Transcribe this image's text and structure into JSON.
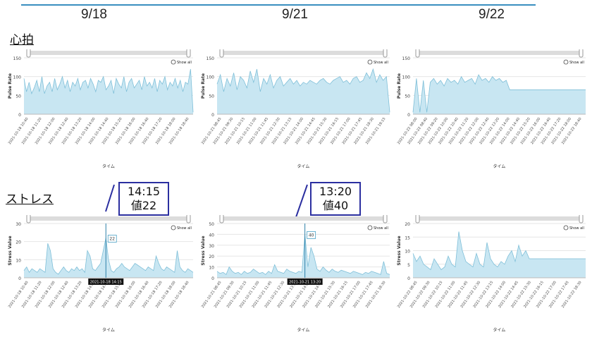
{
  "header": {
    "dates": [
      "9/18",
      "9/21",
      "9/22"
    ]
  },
  "sections": {
    "heart": "心拍",
    "stress": "ストレス"
  },
  "callouts": [
    {
      "time": "14:15",
      "value": "値22"
    },
    {
      "time": "13:20",
      "value": "値40"
    }
  ],
  "chart_data": [
    {
      "type": "area",
      "title": "",
      "xlabel": "タイム",
      "ylabel": "Pulse Rate",
      "ylim": [
        0,
        150
      ],
      "yticks": [
        0,
        50,
        100,
        150
      ],
      "show_all": "Show all",
      "xticks": [
        "2021-10-18 10:40",
        "2021-10-18 11:20",
        "2021-10-18 12:00",
        "2021-10-18 12:40",
        "2021-10-18 13:20",
        "2021-10-18 14:00",
        "2021-10-18 14:40",
        "2021-10-18 15:20",
        "2021-10-18 16:00",
        "2021-10-18 16:40",
        "2021-10-18 17:20",
        "2021-10-18 18:00",
        "2021-10-18 18:40"
      ],
      "values": [
        95,
        60,
        85,
        55,
        70,
        90,
        60,
        100,
        55,
        75,
        85,
        60,
        95,
        65,
        80,
        100,
        70,
        90,
        60,
        85,
        75,
        95,
        65,
        85,
        90,
        70,
        95,
        80,
        60,
        90,
        85,
        100,
        65,
        75,
        90,
        55,
        95,
        80,
        70,
        100,
        60,
        85,
        95,
        70,
        80,
        90,
        65,
        100,
        75,
        85,
        70,
        95,
        60,
        90,
        80,
        100,
        65,
        85,
        75,
        95,
        70,
        90,
        60,
        85,
        80,
        120,
        5
      ]
    },
    {
      "type": "area",
      "title": "",
      "xlabel": "タイム",
      "ylabel": "Pulse Rate",
      "ylim": [
        0,
        150
      ],
      "yticks": [
        0,
        50,
        100,
        150
      ],
      "show_all": "Show all",
      "xticks": [
        "2021-10-21 08:45",
        "2021-10-21 09:30",
        "2021-10-21 10:15",
        "2021-10-21 11:00",
        "2021-10-21 11:45",
        "2021-10-21 12:30",
        "2021-10-21 13:15",
        "2021-10-21 14:00",
        "2021-10-21 14:45",
        "2021-10-21 15:30",
        "2021-10-21 16:15",
        "2021-10-21 17:00",
        "2021-10-21 17:45",
        "2021-10-21 18:30",
        "2021-10-21 19:15"
      ],
      "values": [
        80,
        105,
        60,
        95,
        75,
        110,
        65,
        100,
        90,
        70,
        115,
        85,
        120,
        60,
        95,
        80,
        105,
        70,
        90,
        100,
        75,
        85,
        95,
        80,
        90,
        75,
        85,
        80,
        90,
        85,
        80,
        90,
        95,
        85,
        80,
        90,
        95,
        100,
        85,
        90,
        80,
        95,
        100,
        85,
        90,
        110,
        95,
        120,
        85,
        105,
        90,
        100,
        5
      ]
    },
    {
      "type": "area",
      "title": "",
      "xlabel": "タイム",
      "ylabel": "Pulse Rate",
      "ylim": [
        0,
        150
      ],
      "yticks": [
        0,
        50,
        100,
        150
      ],
      "show_all": "Show all",
      "xticks": [
        "2021-10-22 08:00",
        "2021-10-22 08:40",
        "2021-10-22 09:20",
        "2021-10-22 10:00",
        "2021-10-22 10:40",
        "2021-10-22 11:20",
        "2021-10-22 12:00",
        "2021-10-22 12:40",
        "2021-10-22 13:20",
        "2021-10-22 14:00",
        "2021-10-22 14:40",
        "2021-10-22 15:20",
        "2021-10-22 16:00",
        "2021-10-22 16:40",
        "2021-10-22 17:20",
        "2021-10-22 18:00",
        "2021-10-22 18:40"
      ],
      "values": [
        5,
        95,
        5,
        90,
        5,
        85,
        95,
        80,
        90,
        75,
        95,
        85,
        90,
        80,
        100,
        85,
        90,
        95,
        80,
        105,
        90,
        95,
        85,
        100,
        90,
        95,
        85,
        90,
        65,
        65,
        65,
        65,
        65,
        65,
        65,
        65,
        65,
        65,
        65,
        65,
        65,
        65,
        65,
        65,
        65,
        65,
        65,
        65,
        65,
        65,
        65
      ]
    },
    {
      "type": "area",
      "title": "",
      "xlabel": "タイム",
      "ylabel": "Stress Value",
      "ylim": [
        0,
        30
      ],
      "yticks": [
        0,
        10,
        20,
        30
      ],
      "show_all": "Show all",
      "xticks": [
        "2021-10-18 10:40",
        "2021-10-18 11:20",
        "2021-10-18 12:00",
        "2021-10-18 12:40",
        "2021-10-18 13:20",
        "2021-10-18 14:00",
        "2021-10-18 14:40",
        "2021-10-18 15:20",
        "2021-10-18 16:00",
        "2021-10-18 16:40",
        "2021-10-18 17:20",
        "2021-10-18 18:00",
        "2021-10-18 18:40"
      ],
      "values": [
        4,
        6,
        3,
        5,
        4,
        3,
        5,
        4,
        3,
        19,
        15,
        5,
        3,
        2,
        4,
        6,
        4,
        3,
        5,
        4,
        6,
        4,
        5,
        3,
        15,
        12,
        5,
        4,
        6,
        8,
        15,
        22,
        10,
        4,
        3,
        5,
        6,
        8,
        6,
        5,
        4,
        6,
        8,
        7,
        6,
        5,
        4,
        6,
        5,
        4,
        12,
        8,
        5,
        4,
        6,
        5,
        4,
        3,
        15,
        6,
        4,
        3,
        5,
        4,
        3
      ],
      "tooltip": {
        "index": 31,
        "value": "22",
        "time": "2021-10-18 14:15"
      }
    },
    {
      "type": "area",
      "title": "",
      "xlabel": "タイム",
      "ylabel": "Stress Value",
      "ylim": [
        0,
        50
      ],
      "yticks": [
        0,
        10,
        20,
        30,
        40,
        50
      ],
      "show_all": "Show all",
      "xticks": [
        "2021-10-21 08:45",
        "2021-10-21 09:30",
        "2021-10-21 10:15",
        "2021-10-21 11:00",
        "2021-10-21 11:45",
        "2021-10-21 12:30",
        "2021-10-21 13:15",
        "2021-10-21 14:00",
        "2021-10-21 14:45",
        "2021-10-21 15:30",
        "2021-10-21 16:15",
        "2021-10-21 17:00",
        "2021-10-21 17:45",
        "2021-10-21 18:30"
      ],
      "values": [
        6,
        4,
        5,
        3,
        10,
        6,
        4,
        5,
        3,
        6,
        4,
        5,
        8,
        6,
        4,
        5,
        3,
        6,
        4,
        12,
        6,
        5,
        4,
        8,
        6,
        5,
        4,
        6,
        5,
        40,
        10,
        28,
        20,
        8,
        6,
        10,
        7,
        5,
        8,
        6,
        5,
        7,
        6,
        5,
        4,
        6,
        5,
        4,
        3,
        5,
        4,
        6,
        5,
        4,
        3,
        15,
        4,
        3
      ],
      "tooltip": {
        "index": 29,
        "value": "40",
        "time": "2021-10-21 13:20"
      }
    },
    {
      "type": "area",
      "title": "",
      "xlabel": "タイム",
      "ylabel": "Stress Value",
      "ylim": [
        0,
        20
      ],
      "yticks": [
        0,
        5,
        10,
        15,
        20
      ],
      "show_all": "Show all",
      "xticks": [
        "2021-10-22 08:45",
        "2021-10-22 09:30",
        "2021-10-22 10:15",
        "2021-10-22 11:00",
        "2021-10-22 11:45",
        "2021-10-22 12:30",
        "2021-10-22 13:15",
        "2021-10-22 14:00",
        "2021-10-22 14:45",
        "2021-10-22 15:30",
        "2021-10-22 16:15",
        "2021-10-22 17:00",
        "2021-10-22 17:45",
        "2021-10-22 18:30"
      ],
      "values": [
        9,
        6,
        8,
        5,
        4,
        3,
        7,
        5,
        3,
        4,
        8,
        5,
        4,
        17,
        10,
        6,
        5,
        4,
        9,
        5,
        4,
        13,
        7,
        5,
        4,
        6,
        5,
        8,
        10,
        6,
        12,
        8,
        10,
        7,
        7,
        7,
        7,
        7,
        7,
        7,
        7,
        7,
        7,
        7,
        7,
        7,
        7,
        7,
        7,
        7
      ]
    }
  ]
}
